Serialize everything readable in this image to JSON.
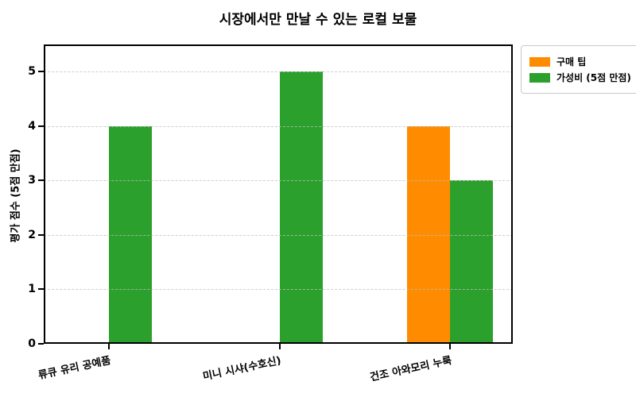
{
  "chart_data": {
    "type": "bar",
    "title": "시장에서만 만날 수 있는 로컬 보물",
    "categories": [
      "류큐 유리 공예품",
      "미니 시샤(수호신)",
      "건조 아와모리 누룩"
    ],
    "series": [
      {
        "name": "구매 팁",
        "color": "#ff8c00",
        "values": [
          0,
          0,
          4
        ]
      },
      {
        "name": "가성비 (5점 만점)",
        "color": "#2ca02c",
        "values": [
          4,
          5,
          3
        ]
      }
    ],
    "xlabel": "",
    "ylabel": "평가 점수 (5점 만점)",
    "ylim": [
      0,
      5.5
    ],
    "yticks": [
      0,
      1,
      2,
      3,
      4,
      5
    ],
    "grid": "horizontal dashed gridlines at integer values, drawn over bars",
    "gridline_color": "#bebebe",
    "axis_color": "#000000",
    "background_color": "#ffffff",
    "legend_position": "upper right, outside plot area",
    "bar_layout": "grouped; orange bar left of tick, green bar right of tick; x labels rotated"
  }
}
